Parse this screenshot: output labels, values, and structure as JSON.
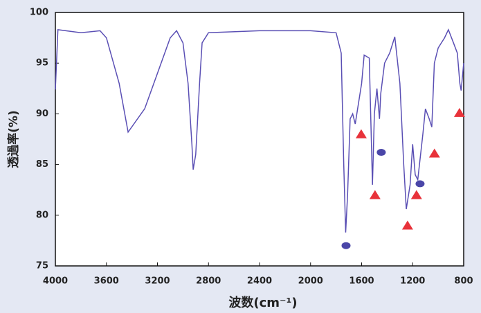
{
  "chart_data": {
    "type": "line",
    "x_label": "波数(cm⁻¹)",
    "y_label": "透過率(%)",
    "xlim": [
      4000,
      800
    ],
    "xticks": [
      4000,
      3600,
      3200,
      2800,
      2400,
      2000,
      1600,
      1200,
      800
    ],
    "ylim": [
      75,
      100
    ],
    "yticks": [
      75,
      80,
      85,
      90,
      95,
      100
    ],
    "x": [
      4000,
      3980,
      3800,
      3650,
      3600,
      3500,
      3430,
      3300,
      3200,
      3100,
      3050,
      3000,
      2960,
      2930,
      2920,
      2900,
      2870,
      2850,
      2800,
      2400,
      2000,
      1800,
      1760,
      1740,
      1725,
      1710,
      1690,
      1670,
      1650,
      1600,
      1580,
      1540,
      1515,
      1500,
      1480,
      1460,
      1450,
      1420,
      1380,
      1340,
      1300,
      1270,
      1250,
      1220,
      1200,
      1180,
      1160,
      1120,
      1100,
      1070,
      1050,
      1030,
      1000,
      950,
      920,
      880,
      850,
      830,
      820,
      800
    ],
    "series": [
      {
        "color": "#5a4fb4",
        "values": [
          92.4,
          98.3,
          98.0,
          98.2,
          97.5,
          93,
          88.2,
          90.5,
          94,
          97.5,
          98.2,
          97,
          93,
          87,
          84.5,
          86,
          93,
          97,
          98,
          98.2,
          98.2,
          98,
          96,
          85,
          78.3,
          82,
          89.5,
          90,
          89,
          93,
          95.8,
          95.5,
          83,
          90,
          92.5,
          89.5,
          92,
          95,
          96,
          97.6,
          93,
          85,
          80.6,
          83,
          87,
          84,
          83.5,
          88,
          90.5,
          89.5,
          88.7,
          95,
          96.5,
          97.5,
          98.3,
          97,
          96,
          93,
          92.3,
          95
        ]
      }
    ],
    "markers": [
      {
        "shape": "triangle",
        "color": "#e8323a",
        "x": [
          1603,
          1495,
          1240,
          1170,
          1029,
          833
        ],
        "values": [
          88.0,
          82.0,
          79.0,
          82.0,
          86.1,
          90.1
        ]
      },
      {
        "shape": "circle",
        "color": "#4a46a8",
        "x": [
          1722,
          1446,
          1142
        ],
        "values": [
          77.0,
          86.2,
          83.1
        ]
      }
    ]
  }
}
